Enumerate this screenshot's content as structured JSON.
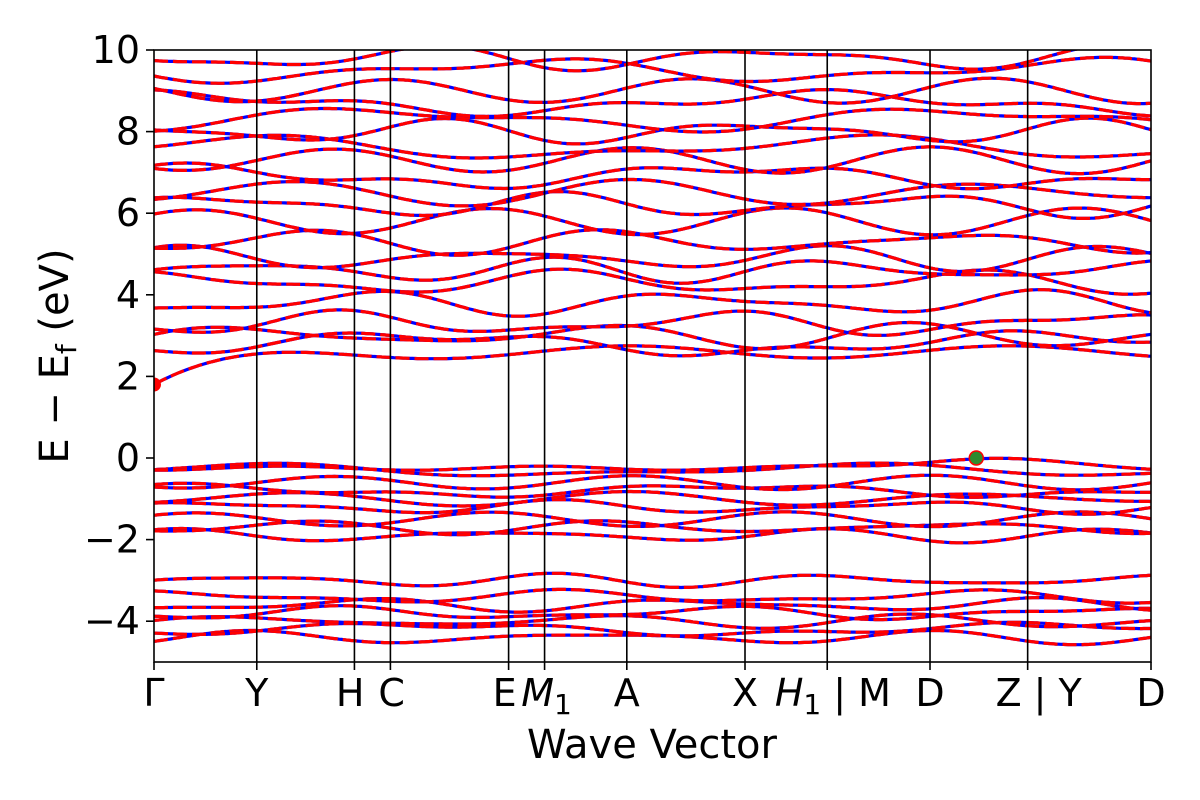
{
  "chart_data": {
    "type": "line",
    "xlabel": "Wave Vector",
    "ylabel": "E − E",
    "ylabel_sub": "f",
    "ylabel_unit": " (eV)",
    "ylim": [
      -5,
      10
    ],
    "y_ticks": [
      -4,
      -2,
      0,
      2,
      4,
      6,
      8,
      10
    ],
    "y_tick_labels": [
      "−4",
      "−2",
      "0",
      "2",
      "4",
      "6",
      "8",
      "10"
    ],
    "k_path_labels": [
      "Γ",
      "Y",
      "H",
      "C",
      "E",
      "M",
      "A",
      "X",
      "H",
      "| M",
      "D",
      "Z",
      "| Y",
      "D"
    ],
    "k_path_subscripts": [
      "",
      "",
      "",
      "",
      "",
      "1",
      "",
      "",
      "1",
      "",
      "",
      "",
      "",
      ""
    ],
    "k_path_positions": [
      0,
      1.0,
      1.95,
      2.3,
      3.45,
      3.8,
      4.6,
      5.75,
      6.55,
      6.55,
      7.55,
      8.5,
      8.5,
      9.7
    ],
    "x_range": [
      0,
      9.7
    ],
    "vertical_lines_at": [
      1.0,
      1.95,
      2.3,
      3.45,
      3.8,
      4.6,
      5.75,
      6.55,
      7.55,
      8.5
    ],
    "band_colors": {
      "up": "#ff0000",
      "down": "#0000ff"
    },
    "bands_endpoints_eV": {
      "valence": [
        -4.4,
        -4.2,
        -4.0,
        -3.8,
        -3.6,
        -3.4,
        -3.0,
        -1.9,
        -1.7,
        -1.5,
        -1.2,
        -1.0,
        -0.8,
        -0.6,
        -0.3,
        0.0
      ],
      "conduction": [
        1.8,
        2.8,
        3.0,
        3.3,
        3.8,
        4.3,
        4.6,
        4.9,
        5.3,
        5.8,
        6.2,
        6.5,
        6.9,
        7.3,
        7.6,
        8.0,
        8.3,
        8.7,
        9.0,
        9.5,
        9.8
      ]
    },
    "vbm_marker": {
      "k": 8.0,
      "E": 0.0,
      "color": "#2e8b2e"
    },
    "cbm_marker": {
      "k": 0.0,
      "E": 1.8,
      "color": "#ff0000"
    }
  }
}
